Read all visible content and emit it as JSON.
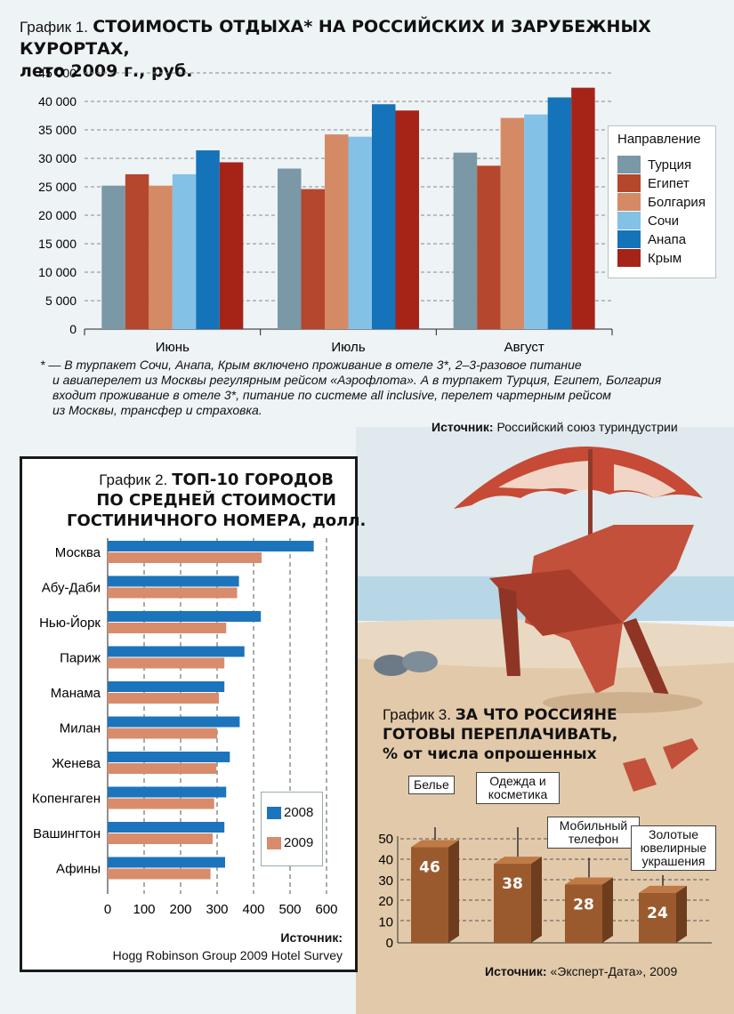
{
  "colors": {
    "turkey": "#7a98a6",
    "egypt": "#b5472c",
    "bulgaria": "#d58a66",
    "sochi": "#84c1e6",
    "anapa": "#1473b9",
    "crimea": "#a62318",
    "blue2008": "#1c74bc",
    "peach2009": "#d88c6c",
    "box3": "#9b5a2e"
  },
  "chart1": {
    "prefix": "График 1.",
    "title_line1": "СТОИМОСТЬ ОТДЫХА* НА РОССИЙСКИХ И ЗАРУБЕЖНЫХ КУРОРТАХ,",
    "title_line2": "лето 2009 г., руб.",
    "legend_title": "Направление",
    "footnote_lines": [
      "* — В турпакет Сочи, Анапа, Крым включено проживание в отеле 3*, 2–3-разовое питание",
      "и авиаперелет из Москвы регулярным рейсом «Аэрофлота». А в турпакет Турция, Египет, Болгария",
      "входит проживание в отеле 3*, питание по системе all inclusive, перелет чартерным рейсом",
      "из Москвы, трансфер и страховка."
    ],
    "source_label": "Источник:",
    "source_text": "Российский союз туриндустрии"
  },
  "chart2": {
    "prefix": "График 2.",
    "title_lines": [
      "ТОП-10 ГОРОДОВ",
      "ПО СРЕДНЕЙ СТОИМОСТИ",
      "ГОСТИНИЧНОГО НОМЕРА, долл."
    ],
    "source_label": "Источник:",
    "source_text": "Hogg Robinson Group 2009 Hotel Survey"
  },
  "chart3": {
    "prefix": "График 3.",
    "title_lines": [
      "ЗА ЧТО РОССИЯНЕ",
      "ГОТОВЫ ПЕРЕПЛАЧИВАТЬ,",
      "% от числа опрошенных"
    ],
    "source_label": "Источник:",
    "source_text": "«Эксперт-Дата», 2009"
  },
  "chart_data": [
    {
      "type": "bar",
      "title": "СТОИМОСТЬ ОТДЫХА* НА РОССИЙСКИХ И ЗАРУБЕЖНЫХ КУРОРТАХ, лето 2009 г., руб.",
      "categories": [
        "Июнь",
        "Июль",
        "Август"
      ],
      "series": [
        {
          "name": "Турция",
          "values": [
            25200,
            28200,
            31000
          ]
        },
        {
          "name": "Египет",
          "values": [
            27200,
            24600,
            28700
          ]
        },
        {
          "name": "Болгария",
          "values": [
            25200,
            34200,
            37100
          ]
        },
        {
          "name": "Сочи",
          "values": [
            27200,
            33800,
            37700
          ]
        },
        {
          "name": "Анапа",
          "values": [
            31400,
            39500,
            40700
          ]
        },
        {
          "name": "Крым",
          "values": [
            29300,
            38400,
            42400
          ]
        }
      ],
      "yticks": [
        "0",
        "5 000",
        "10 000",
        "15 000",
        "20 000",
        "25 000",
        "30 000",
        "35 000",
        "40 000",
        "45 000"
      ],
      "ylim": [
        0,
        45000
      ],
      "grid": true,
      "legend": "right"
    },
    {
      "type": "bar",
      "orientation": "horizontal",
      "title": "ТОП-10 ГОРОДОВ ПО СРЕДНЕЙ СТОИМОСТИ ГОСТИНИЧНОГО НОМЕРА, долл.",
      "categories": [
        "Москва",
        "Абу-Даби",
        "Нью-Йорк",
        "Париж",
        "Манама",
        "Милан",
        "Женева",
        "Копенгаген",
        "Вашингтон",
        "Афины"
      ],
      "series": [
        {
          "name": "2008",
          "values": [
            565,
            360,
            420,
            375,
            320,
            362,
            335,
            325,
            320,
            322
          ]
        },
        {
          "name": "2009",
          "values": [
            422,
            355,
            325,
            320,
            305,
            300,
            298,
            292,
            288,
            282
          ]
        }
      ],
      "xticks": [
        "0",
        "100",
        "200",
        "300",
        "400",
        "500",
        "600"
      ],
      "xlim": [
        0,
        600
      ],
      "grid": true,
      "legend": "bottom-right"
    },
    {
      "type": "bar",
      "title": "ЗА ЧТО РОССИЯНЕ ГОТОВЫ ПЕРЕПЛАЧИВАТЬ, % от числа опрошенных",
      "categories": [
        "Белье",
        "Одежда и косметика",
        "Мобильный телефон",
        "Золотые ювелирные украшения"
      ],
      "values": [
        46,
        38,
        28,
        24
      ],
      "labels": [
        "46",
        "38",
        "28",
        "24"
      ],
      "yticks": [
        "0",
        "10",
        "20",
        "30",
        "40",
        "50"
      ],
      "ylim": [
        0,
        50
      ],
      "grid": true
    }
  ]
}
